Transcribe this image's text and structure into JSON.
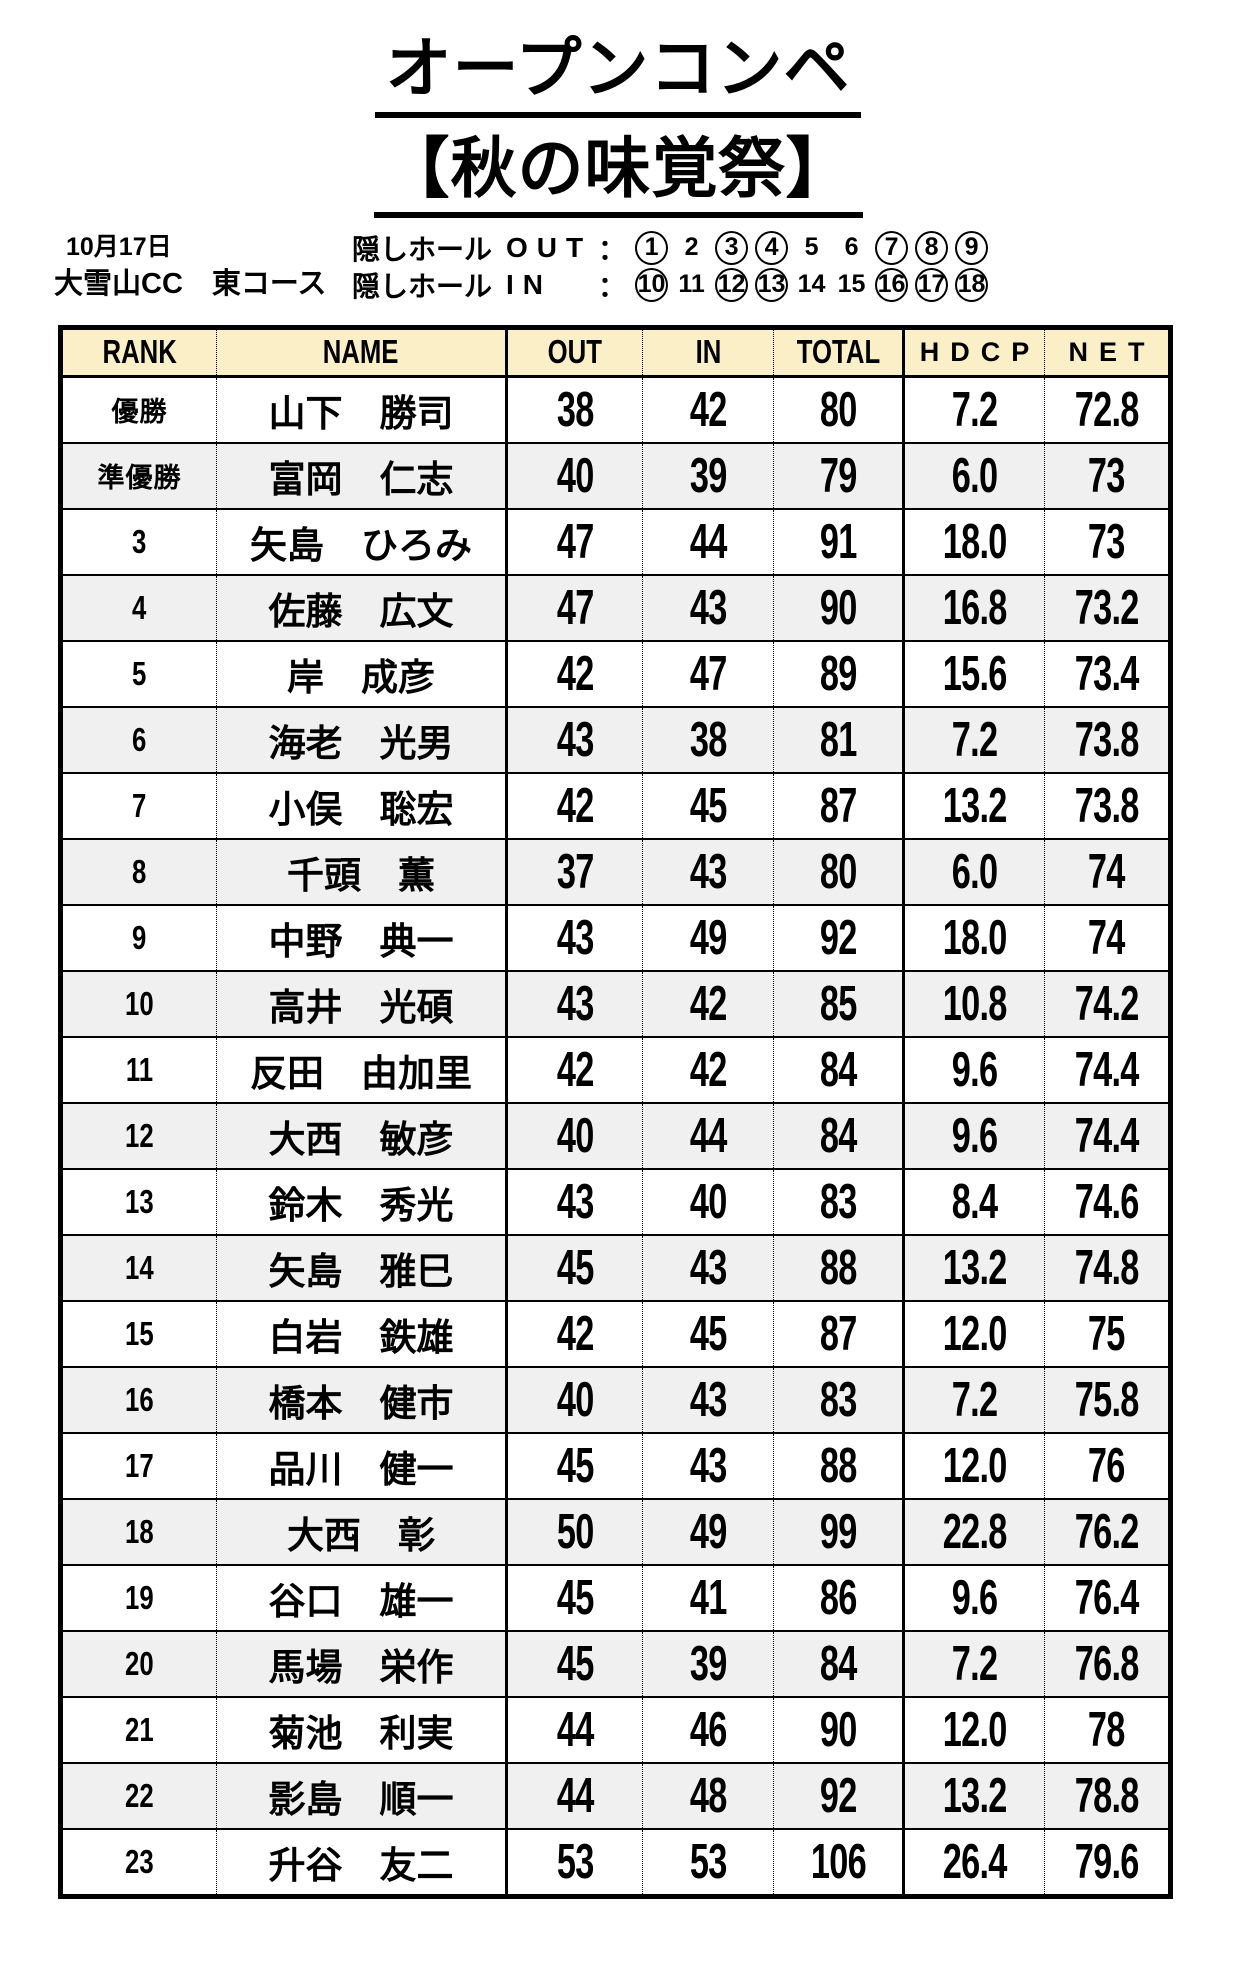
{
  "title": {
    "line1": "オープンコンペ",
    "line2": "【秋の味覚祭】"
  },
  "event_info": {
    "date": "10月17日",
    "course": "大雪山CC　東コース",
    "hidden_hole_rows": [
      {
        "label": "隠しホール",
        "set_name": "OUT",
        "colon": "：",
        "holes": [
          {
            "value": "1",
            "circled": true
          },
          {
            "value": "2",
            "circled": false
          },
          {
            "value": "3",
            "circled": true
          },
          {
            "value": "4",
            "circled": true
          },
          {
            "value": "5",
            "circled": false
          },
          {
            "value": "6",
            "circled": false
          },
          {
            "value": "7",
            "circled": true
          },
          {
            "value": "8",
            "circled": true
          },
          {
            "value": "9",
            "circled": true
          }
        ]
      },
      {
        "label": "隠しホール",
        "set_name": "IN",
        "colon": "：",
        "holes": [
          {
            "value": "10",
            "circled": true
          },
          {
            "value": "11",
            "circled": false
          },
          {
            "value": "12",
            "circled": true
          },
          {
            "value": "13",
            "circled": true
          },
          {
            "value": "14",
            "circled": false
          },
          {
            "value": "15",
            "circled": false
          },
          {
            "value": "16",
            "circled": true
          },
          {
            "value": "17",
            "circled": true
          },
          {
            "value": "18",
            "circled": true
          }
        ]
      }
    ]
  },
  "results_table": {
    "headers": [
      {
        "key": "rank",
        "label": "RANK",
        "wide": false
      },
      {
        "key": "name",
        "label": "NAME",
        "wide": false
      },
      {
        "key": "out",
        "label": "OUT",
        "wide": false
      },
      {
        "key": "in",
        "label": "IN",
        "wide": false
      },
      {
        "key": "total",
        "label": "TOTAL",
        "wide": false
      },
      {
        "key": "hdcp",
        "label": "HDCP",
        "wide": true
      },
      {
        "key": "net",
        "label": "NET",
        "wide": true
      }
    ],
    "rows": [
      {
        "rank": "優勝",
        "name": "山下　勝司",
        "out": "38",
        "in": "42",
        "total": "80",
        "hdcp": "7.2",
        "net": "72.8"
      },
      {
        "rank": "準優勝",
        "name": "富岡　仁志",
        "out": "40",
        "in": "39",
        "total": "79",
        "hdcp": "6.0",
        "net": "73"
      },
      {
        "rank": "3",
        "name": "矢島　ひろみ",
        "out": "47",
        "in": "44",
        "total": "91",
        "hdcp": "18.0",
        "net": "73"
      },
      {
        "rank": "4",
        "name": "佐藤　広文",
        "out": "47",
        "in": "43",
        "total": "90",
        "hdcp": "16.8",
        "net": "73.2"
      },
      {
        "rank": "5",
        "name": "岸　成彦",
        "out": "42",
        "in": "47",
        "total": "89",
        "hdcp": "15.6",
        "net": "73.4"
      },
      {
        "rank": "6",
        "name": "海老　光男",
        "out": "43",
        "in": "38",
        "total": "81",
        "hdcp": "7.2",
        "net": "73.8"
      },
      {
        "rank": "7",
        "name": "小俣　聡宏",
        "out": "42",
        "in": "45",
        "total": "87",
        "hdcp": "13.2",
        "net": "73.8"
      },
      {
        "rank": "8",
        "name": "千頭　薫",
        "out": "37",
        "in": "43",
        "total": "80",
        "hdcp": "6.0",
        "net": "74"
      },
      {
        "rank": "9",
        "name": "中野　典一",
        "out": "43",
        "in": "49",
        "total": "92",
        "hdcp": "18.0",
        "net": "74"
      },
      {
        "rank": "10",
        "name": "高井　光碩",
        "out": "43",
        "in": "42",
        "total": "85",
        "hdcp": "10.8",
        "net": "74.2"
      },
      {
        "rank": "11",
        "name": "反田　由加里",
        "out": "42",
        "in": "42",
        "total": "84",
        "hdcp": "9.6",
        "net": "74.4"
      },
      {
        "rank": "12",
        "name": "大西　敏彦",
        "out": "40",
        "in": "44",
        "total": "84",
        "hdcp": "9.6",
        "net": "74.4"
      },
      {
        "rank": "13",
        "name": "鈴木　秀光",
        "out": "43",
        "in": "40",
        "total": "83",
        "hdcp": "8.4",
        "net": "74.6"
      },
      {
        "rank": "14",
        "name": "矢島　雅巳",
        "out": "45",
        "in": "43",
        "total": "88",
        "hdcp": "13.2",
        "net": "74.8"
      },
      {
        "rank": "15",
        "name": "白岩　鉄雄",
        "out": "42",
        "in": "45",
        "total": "87",
        "hdcp": "12.0",
        "net": "75"
      },
      {
        "rank": "16",
        "name": "橋本　健市",
        "out": "40",
        "in": "43",
        "total": "83",
        "hdcp": "7.2",
        "net": "75.8"
      },
      {
        "rank": "17",
        "name": "品川　健一",
        "out": "45",
        "in": "43",
        "total": "88",
        "hdcp": "12.0",
        "net": "76"
      },
      {
        "rank": "18",
        "name": "大西　彰",
        "out": "50",
        "in": "49",
        "total": "99",
        "hdcp": "22.8",
        "net": "76.2"
      },
      {
        "rank": "19",
        "name": "谷口　雄一",
        "out": "45",
        "in": "41",
        "total": "86",
        "hdcp": "9.6",
        "net": "76.4"
      },
      {
        "rank": "20",
        "name": "馬場　栄作",
        "out": "45",
        "in": "39",
        "total": "84",
        "hdcp": "7.2",
        "net": "76.8"
      },
      {
        "rank": "21",
        "name": "菊池　利実",
        "out": "44",
        "in": "46",
        "total": "90",
        "hdcp": "12.0",
        "net": "78"
      },
      {
        "rank": "22",
        "name": "影島　順一",
        "out": "44",
        "in": "48",
        "total": "92",
        "hdcp": "13.2",
        "net": "78.8"
      },
      {
        "rank": "23",
        "name": "升谷　友二",
        "out": "53",
        "in": "53",
        "total": "106",
        "hdcp": "26.4",
        "net": "79.6"
      }
    ]
  },
  "colors": {
    "page_bg": "#FFFFFF",
    "header_bg": "#FBEFC7",
    "row_alt_bg": "#F0F0F0",
    "border": "#000000"
  }
}
